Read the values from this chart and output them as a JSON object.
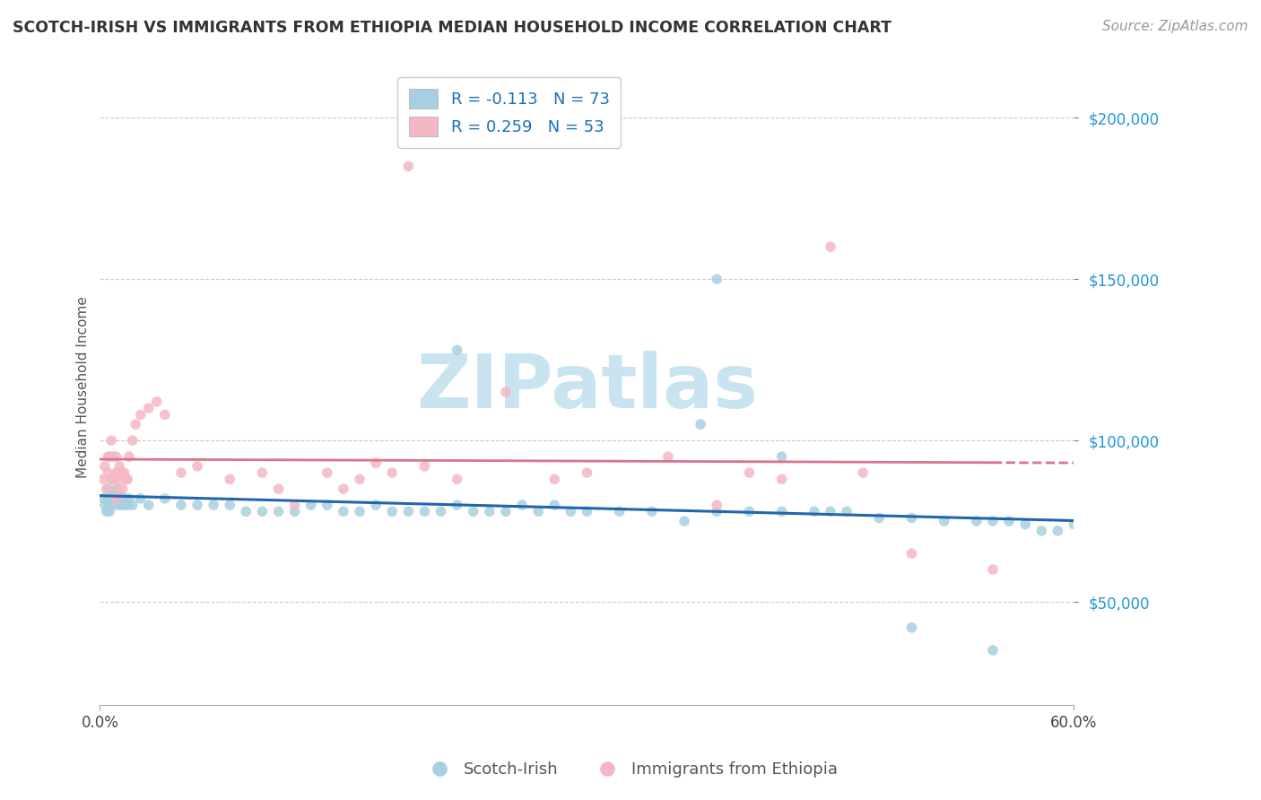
{
  "title": "SCOTCH-IRISH VS IMMIGRANTS FROM ETHIOPIA MEDIAN HOUSEHOLD INCOME CORRELATION CHART",
  "source": "Source: ZipAtlas.com",
  "ylabel": "Median Household Income",
  "y_ticks": [
    50000,
    100000,
    150000,
    200000
  ],
  "y_tick_labels": [
    "$50,000",
    "$100,000",
    "$150,000",
    "$200,000"
  ],
  "xlim": [
    0.0,
    60.0
  ],
  "ylim": [
    18000,
    215000
  ],
  "scotch_irish_R": -0.113,
  "scotch_irish_N": 73,
  "ethiopia_R": 0.259,
  "ethiopia_N": 53,
  "blue_scatter_color": "#a8cfe0",
  "blue_line_color": "#2166ac",
  "pink_scatter_color": "#f4b8c4",
  "pink_line_color": "#d9748a",
  "watermark_color": "#c8e4f0",
  "legend_blue_label": "Scotch-Irish",
  "legend_pink_label": "Immigrants from Ethiopia",
  "scotch_irish_x": [
    0.2,
    0.3,
    0.4,
    0.5,
    0.5,
    0.6,
    0.6,
    0.7,
    0.8,
    0.9,
    1.0,
    1.0,
    1.1,
    1.2,
    1.3,
    1.4,
    1.5,
    1.6,
    1.7,
    1.8,
    2.0,
    2.5,
    3.0,
    4.0,
    5.0,
    6.0,
    7.0,
    8.0,
    9.0,
    10.0,
    11.0,
    12.0,
    13.0,
    14.0,
    15.0,
    16.0,
    17.0,
    18.0,
    19.0,
    20.0,
    21.0,
    22.0,
    23.0,
    24.0,
    25.0,
    26.0,
    27.0,
    28.0,
    29.0,
    30.0,
    32.0,
    34.0,
    36.0,
    38.0,
    40.0,
    42.0,
    44.0,
    45.0,
    46.0,
    48.0,
    50.0,
    52.0,
    54.0,
    55.0,
    56.0,
    57.0,
    58.0,
    59.0,
    60.0,
    37.0,
    42.0,
    50.0,
    55.0
  ],
  "scotch_irish_y": [
    82000,
    80000,
    78000,
    82000,
    85000,
    80000,
    78000,
    82000,
    88000,
    84000,
    80000,
    85000,
    82000,
    84000,
    80000,
    82000,
    80000,
    82000,
    80000,
    82000,
    80000,
    82000,
    80000,
    82000,
    80000,
    80000,
    80000,
    80000,
    78000,
    78000,
    78000,
    78000,
    80000,
    80000,
    78000,
    78000,
    80000,
    78000,
    78000,
    78000,
    78000,
    80000,
    78000,
    78000,
    78000,
    80000,
    78000,
    80000,
    78000,
    78000,
    78000,
    78000,
    75000,
    78000,
    78000,
    78000,
    78000,
    78000,
    78000,
    76000,
    76000,
    75000,
    75000,
    75000,
    75000,
    74000,
    72000,
    72000,
    74000,
    105000,
    95000,
    42000,
    35000
  ],
  "ethiopia_x": [
    0.2,
    0.3,
    0.4,
    0.5,
    0.5,
    0.6,
    0.7,
    0.7,
    0.8,
    0.9,
    1.0,
    1.0,
    1.0,
    1.1,
    1.1,
    1.2,
    1.2,
    1.3,
    1.4,
    1.5,
    1.6,
    1.7,
    1.8,
    2.0,
    2.2,
    2.5,
    3.0,
    3.5,
    4.0,
    5.0,
    6.0,
    8.0,
    10.0,
    11.0,
    12.0,
    14.0,
    15.0,
    16.0,
    17.0,
    18.0,
    20.0,
    22.0,
    25.0,
    28.0,
    30.0,
    35.0,
    38.0,
    40.0,
    42.0,
    45.0,
    47.0,
    50.0,
    55.0
  ],
  "ethiopia_y": [
    88000,
    92000,
    85000,
    90000,
    95000,
    95000,
    100000,
    88000,
    95000,
    88000,
    95000,
    90000,
    82000,
    90000,
    85000,
    92000,
    88000,
    90000,
    85000,
    90000,
    88000,
    88000,
    95000,
    100000,
    105000,
    108000,
    110000,
    112000,
    108000,
    90000,
    92000,
    88000,
    90000,
    85000,
    80000,
    90000,
    85000,
    88000,
    93000,
    90000,
    92000,
    88000,
    115000,
    88000,
    90000,
    95000,
    80000,
    90000,
    88000,
    160000,
    90000,
    65000,
    60000
  ],
  "pink_outlier_x": 19.0,
  "pink_outlier_y": 185000,
  "blue_outlier1_x": 22.0,
  "blue_outlier1_y": 128000,
  "blue_outlier2_x": 38.0,
  "blue_outlier2_y": 150000
}
